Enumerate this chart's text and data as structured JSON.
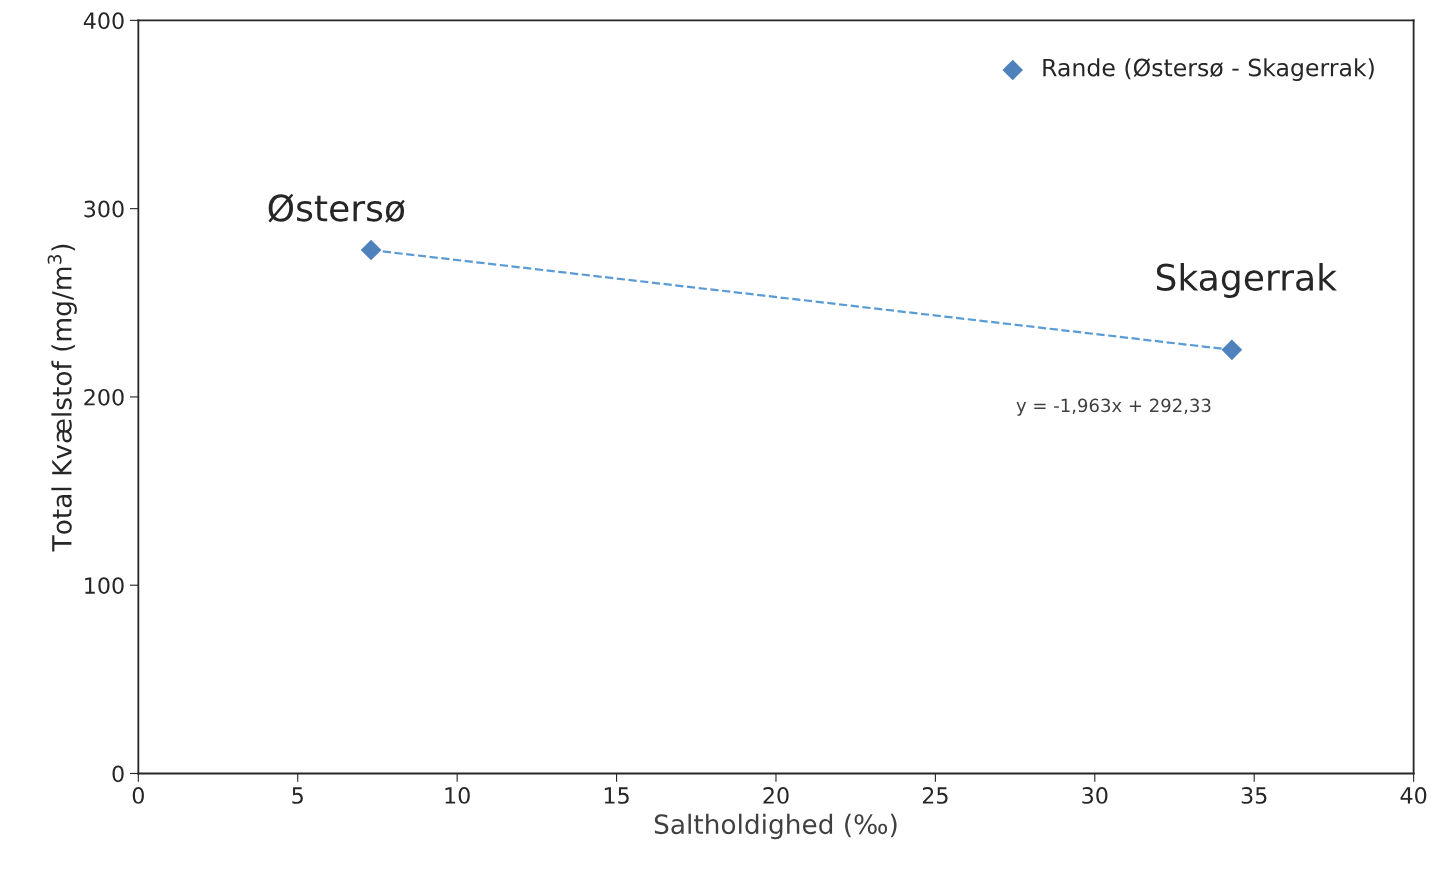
{
  "chart_data": {
    "type": "scatter",
    "xlabel": "Saltholdighed (‰)",
    "ylabel": "Total Kvælstof (mg/m$^{3}$)",
    "x": [
      7.3,
      34.3
    ],
    "series": [
      {
        "name": "Rande (Østersø - Skagerrak)",
        "color": "#4f81bd",
        "values": [
          278,
          225
        ],
        "marker": "diamond"
      },
      {
        "type": "line",
        "color": "#5b9bd5",
        "values": [
          278,
          225
        ],
        "line_style": "dashed",
        "marker": "none"
      }
    ],
    "annotations": [
      {
        "text": "Østersø",
        "x": 7.3,
        "y": 278
      },
      {
        "text": "Skagerrak",
        "x": 34.3,
        "y": 225
      },
      "y = -1,963x + 292,33"
    ],
    "xlim": [
      0,
      40
    ],
    "xticks": [
      0,
      5,
      10,
      15,
      20,
      25,
      30,
      35,
      40
    ],
    "ylim": [
      0,
      400
    ],
    "yticks": [
      0,
      100,
      200,
      300,
      400
    ],
    "grid": false,
    "legend": "top right"
  }
}
